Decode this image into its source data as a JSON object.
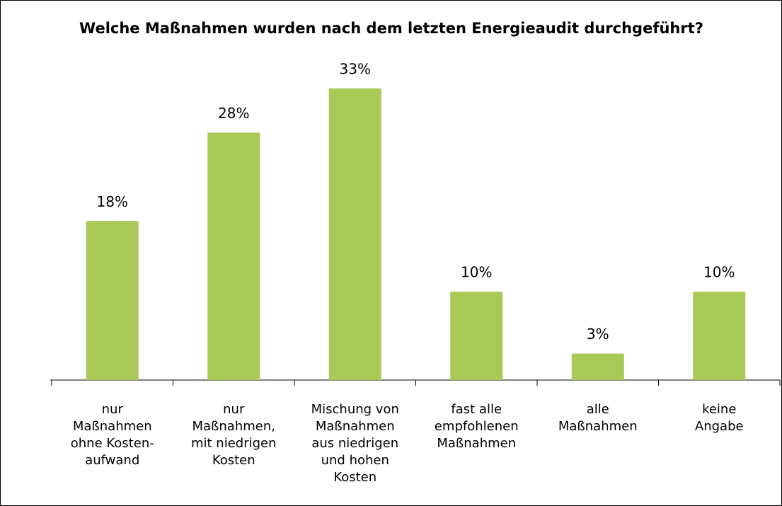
{
  "chart_data": {
    "type": "bar",
    "title": "Welche Maßnahmen wurden nach dem letzten Energieaudit durchgeführt?",
    "categories": [
      "nur\nMaßnahmen\nohne Kosten-\naufwand",
      "nur\nMaßnahmen,\nmit niedrigen\nKosten",
      "Mischung von\nMaßnahmen\naus niedrigen\nund hohen\nKosten",
      "fast alle\nempfohlenen\nMaßnahmen",
      "alle\nMaßnahmen",
      "keine\nAngabe"
    ],
    "values": [
      18,
      28,
      33,
      10,
      3,
      10
    ],
    "value_labels": [
      "18%",
      "28%",
      "33%",
      "10%",
      "3%",
      "10%"
    ],
    "color": "#a9c957"
  }
}
